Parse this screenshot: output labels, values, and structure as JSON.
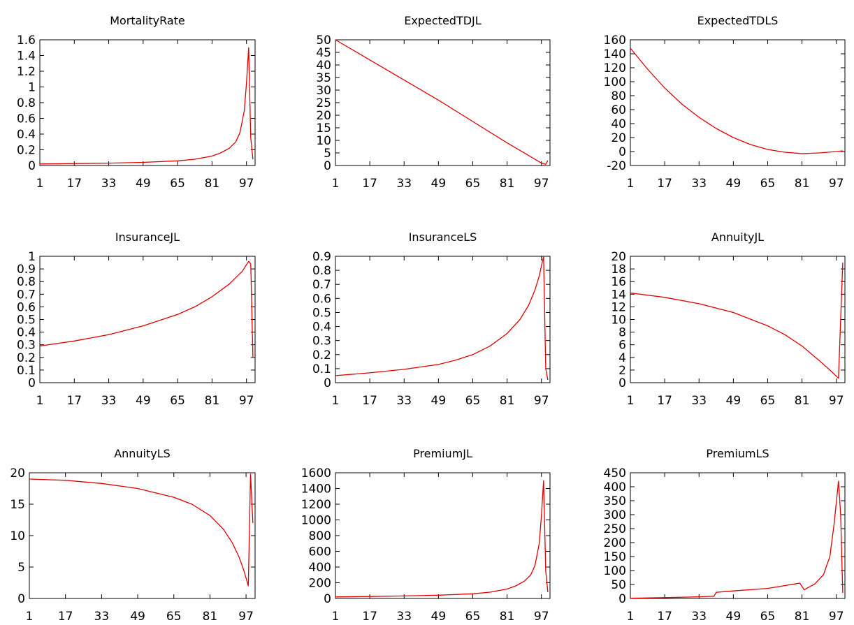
{
  "chart_data": [
    {
      "type": "line",
      "title": "MortalityRate",
      "ylim": [
        0,
        1.6
      ],
      "yticks": [
        "0",
        "0.2",
        "0.4",
        "0.6",
        "0.8",
        "1",
        "1.2",
        "1.4",
        "1.6"
      ],
      "xticks": [
        "1",
        "17",
        "33",
        "49",
        "65",
        "81",
        "97"
      ],
      "xlim": [
        1,
        101
      ],
      "series": [
        {
          "color": "#e00000",
          "x": [
            1,
            17,
            33,
            49,
            65,
            73,
            81,
            85,
            89,
            92,
            94,
            96,
            97,
            98,
            99,
            100
          ],
          "y": [
            0.02,
            0.025,
            0.03,
            0.04,
            0.06,
            0.08,
            0.12,
            0.16,
            0.22,
            0.3,
            0.42,
            0.7,
            1.05,
            1.5,
            0.35,
            0.08
          ]
        }
      ]
    },
    {
      "type": "line",
      "title": "ExpectedTDJL",
      "ylim": [
        0,
        50
      ],
      "yticks": [
        "0",
        "5",
        "10",
        "15",
        "20",
        "25",
        "30",
        "35",
        "40",
        "45",
        "50"
      ],
      "xticks": [
        "1",
        "17",
        "33",
        "49",
        "65",
        "81",
        "97"
      ],
      "xlim": [
        1,
        101
      ],
      "series": [
        {
          "color": "#e00000",
          "x": [
            1,
            17,
            33,
            49,
            65,
            81,
            97,
            99,
            100
          ],
          "y": [
            50,
            42,
            34,
            26,
            17.5,
            9,
            1,
            0.5,
            2
          ]
        }
      ]
    },
    {
      "type": "line",
      "title": "ExpectedTDLS",
      "ylim": [
        -20,
        160
      ],
      "yticks": [
        "-20",
        "0",
        "20",
        "40",
        "60",
        "80",
        "100",
        "120",
        "140",
        "160"
      ],
      "xticks": [
        "1",
        "17",
        "33",
        "49",
        "65",
        "81",
        "97"
      ],
      "xlim": [
        1,
        101
      ],
      "series": [
        {
          "color": "#e00000",
          "x": [
            1,
            9,
            17,
            25,
            33,
            41,
            49,
            57,
            65,
            73,
            81,
            89,
            97,
            100
          ],
          "y": [
            148,
            118,
            91,
            68,
            49,
            33,
            20,
            10,
            3,
            -1,
            -3,
            -2,
            0,
            1
          ]
        }
      ]
    },
    {
      "type": "line",
      "title": "InsuranceJL",
      "ylim": [
        0,
        1
      ],
      "yticks": [
        "0",
        "0.1",
        "0.2",
        "0.3",
        "0.4",
        "0.5",
        "0.6",
        "0.7",
        "0.8",
        "0.9",
        "1"
      ],
      "xticks": [
        "1",
        "17",
        "33",
        "49",
        "65",
        "81",
        "97"
      ],
      "xlim": [
        1,
        101
      ],
      "series": [
        {
          "color": "#e00000",
          "x": [
            1,
            17,
            33,
            49,
            65,
            73,
            81,
            89,
            95,
            98,
            99,
            100
          ],
          "y": [
            0.29,
            0.33,
            0.38,
            0.45,
            0.54,
            0.6,
            0.68,
            0.78,
            0.88,
            0.96,
            0.94,
            0.2
          ]
        }
      ]
    },
    {
      "type": "line",
      "title": "InsuranceLS",
      "ylim": [
        0,
        0.9
      ],
      "yticks": [
        "0",
        "0.1",
        "0.2",
        "0.3",
        "0.4",
        "0.5",
        "0.6",
        "0.7",
        "0.8",
        "0.9"
      ],
      "xticks": [
        "1",
        "17",
        "33",
        "49",
        "65",
        "81",
        "97"
      ],
      "xlim": [
        1,
        101
      ],
      "series": [
        {
          "color": "#e00000",
          "x": [
            1,
            17,
            33,
            49,
            57,
            65,
            73,
            81,
            87,
            91,
            94,
            96,
            98,
            99,
            100
          ],
          "y": [
            0.05,
            0.07,
            0.095,
            0.13,
            0.16,
            0.2,
            0.26,
            0.35,
            0.45,
            0.55,
            0.66,
            0.76,
            0.9,
            0.1,
            0.02
          ]
        }
      ]
    },
    {
      "type": "line",
      "title": "AnnuityJL",
      "ylim": [
        0,
        20
      ],
      "yticks": [
        "0",
        "2",
        "4",
        "6",
        "8",
        "10",
        "12",
        "14",
        "16",
        "18",
        "20"
      ],
      "xticks": [
        "1",
        "17",
        "33",
        "49",
        "65",
        "81",
        "97"
      ],
      "xlim": [
        1,
        101
      ],
      "series": [
        {
          "color": "#e00000",
          "x": [
            1,
            17,
            33,
            49,
            65,
            73,
            81,
            89,
            94,
            98,
            100
          ],
          "y": [
            14.2,
            13.5,
            12.5,
            11.1,
            9.0,
            7.6,
            5.8,
            3.5,
            2.0,
            0.7,
            19
          ]
        }
      ]
    },
    {
      "type": "line",
      "title": "AnnuityLS",
      "ylim": [
        0,
        20
      ],
      "yticks": [
        "0",
        "5",
        "10",
        "15",
        "20"
      ],
      "xticks": [
        "1",
        "17",
        "33",
        "49",
        "65",
        "81",
        "97"
      ],
      "xlim": [
        1,
        101
      ],
      "series": [
        {
          "color": "#e00000",
          "x": [
            1,
            17,
            33,
            49,
            65,
            73,
            81,
            87,
            91,
            94,
            96,
            98,
            99,
            100
          ],
          "y": [
            19,
            18.8,
            18.3,
            17.5,
            16.1,
            15.0,
            13.2,
            11.0,
            8.8,
            6.5,
            4.5,
            2.0,
            19.8,
            12
          ]
        }
      ]
    },
    {
      "type": "line",
      "title": "PremiumJL",
      "ylim": [
        0,
        1600
      ],
      "yticks": [
        "0",
        "200",
        "400",
        "600",
        "800",
        "1000",
        "1200",
        "1400",
        "1600"
      ],
      "xticks": [
        "1",
        "17",
        "33",
        "49",
        "65",
        "81",
        "97"
      ],
      "xlim": [
        1,
        101
      ],
      "series": [
        {
          "color": "#e00000",
          "x": [
            1,
            17,
            33,
            49,
            65,
            73,
            81,
            85,
            89,
            92,
            94,
            96,
            97,
            98,
            99,
            100
          ],
          "y": [
            20,
            25,
            32,
            42,
            60,
            80,
            120,
            160,
            220,
            300,
            420,
            700,
            1050,
            1500,
            350,
            80
          ]
        }
      ]
    },
    {
      "type": "line",
      "title": "PremiumLS",
      "ylim": [
        0,
        450
      ],
      "yticks": [
        "0",
        "50",
        "100",
        "150",
        "200",
        "250",
        "300",
        "350",
        "400",
        "450"
      ],
      "xticks": [
        "1",
        "17",
        "33",
        "49",
        "65",
        "81",
        "97"
      ],
      "xlim": [
        1,
        101
      ],
      "series": [
        {
          "color": "#e00000",
          "x": [
            1,
            17,
            33,
            40,
            41,
            49,
            65,
            80,
            82,
            87,
            91,
            94,
            96,
            98,
            99,
            100
          ],
          "y": [
            1,
            3,
            6,
            8,
            22,
            27,
            36,
            55,
            31,
            52,
            85,
            150,
            270,
            420,
            300,
            20
          ]
        }
      ]
    }
  ]
}
